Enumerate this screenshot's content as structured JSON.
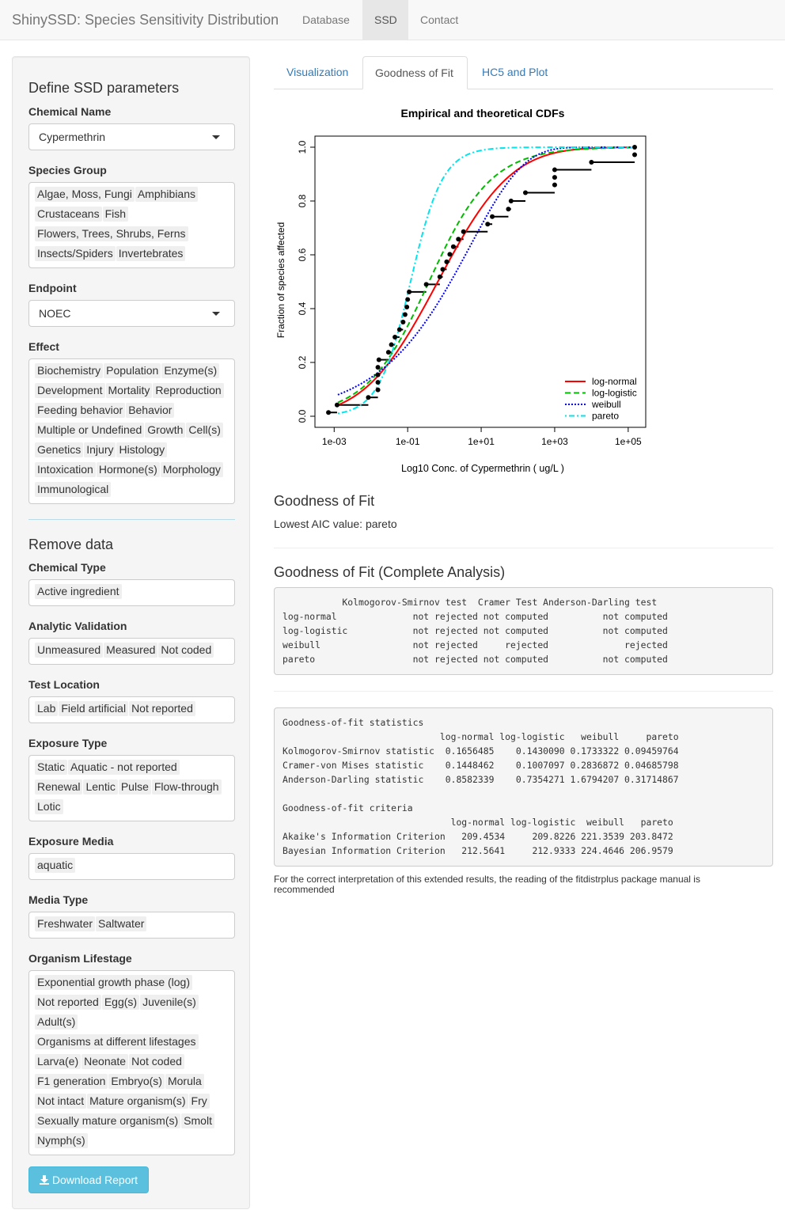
{
  "navbar": {
    "brand": "ShinySSD: Species Sensitivity Distribution",
    "items": [
      {
        "label": "Database"
      },
      {
        "label": "SSD"
      },
      {
        "label": "Contact"
      }
    ]
  },
  "sidebar": {
    "define_title": "Define SSD parameters",
    "chemical_name": {
      "label": "Chemical Name",
      "value": "Cypermethrin"
    },
    "species_group": {
      "label": "Species Group",
      "tags": [
        "Algae, Moss, Fungi",
        "Amphibians",
        "Crustaceans",
        "Fish",
        "Flowers, Trees, Shrubs, Ferns",
        "Insects/Spiders",
        "Invertebrates"
      ]
    },
    "endpoint": {
      "label": "Endpoint",
      "value": "NOEC"
    },
    "effect": {
      "label": "Effect",
      "tags": [
        "Biochemistry",
        "Population",
        "Enzyme(s)",
        "Development",
        "Mortality",
        "Reproduction",
        "Feeding behavior",
        "Behavior",
        "Multiple or Undefined",
        "Growth",
        "Cell(s)",
        "Genetics",
        "Injury",
        "Histology",
        "Intoxication",
        "Hormone(s)",
        "Morphology",
        "Immunological"
      ]
    },
    "remove_title": "Remove data",
    "chemical_type": {
      "label": "Chemical Type",
      "tags": [
        "Active ingredient"
      ]
    },
    "analytic_validation": {
      "label": "Analytic Validation",
      "tags": [
        "Unmeasured",
        "Measured",
        "Not coded"
      ]
    },
    "test_location": {
      "label": "Test Location",
      "tags": [
        "Lab",
        "Field artificial",
        "Not reported"
      ]
    },
    "exposure_type": {
      "label": "Exposure Type",
      "tags": [
        "Static",
        "Aquatic - not reported",
        "Renewal",
        "Lentic",
        "Pulse",
        "Flow-through",
        "Lotic"
      ]
    },
    "exposure_media": {
      "label": "Exposure Media",
      "tags": [
        "aquatic"
      ]
    },
    "media_type": {
      "label": "Media Type",
      "tags": [
        "Freshwater",
        "Saltwater"
      ]
    },
    "organism_lifestage": {
      "label": "Organism Lifestage",
      "tags": [
        "Exponential growth phase (log)",
        "Not reported",
        "Egg(s)",
        "Juvenile(s)",
        "Adult(s)",
        "Organisms at different lifestages",
        "Larva(e)",
        "Neonate",
        "Not coded",
        "F1 generation",
        "Embryo(s)",
        "Morula",
        "Not intact",
        "Mature organism(s)",
        "Fry",
        "Sexually mature organism(s)",
        "Smolt",
        "Nymph(s)"
      ]
    },
    "download_label": "Download Report",
    "download_icon": "download-icon"
  },
  "main": {
    "tabs": [
      {
        "label": "Visualization"
      },
      {
        "label": "Goodness of Fit"
      },
      {
        "label": "HC5 and Plot"
      }
    ],
    "gof_title": "Goodness of Fit",
    "lowest_aic": "Lowest AIC value: pareto",
    "complete_title": "Goodness of Fit (Complete Analysis)",
    "tests_table": "           Kolmogorov-Smirnov test  Cramer Test Anderson-Darling test\nlog-normal              not rejected not computed          not computed\nlog-logistic            not rejected not computed          not computed\nweibull                 not rejected     rejected              rejected\npareto                  not rejected not computed          not computed",
    "stats_table": "Goodness-of-fit statistics\n                             log-normal log-logistic   weibull     pareto\nKolmogorov-Smirnov statistic  0.1656485    0.1430090 0.1733322 0.09459764\nCramer-von Mises statistic    0.1448462    0.1007097 0.2836872 0.04685798\nAnderson-Darling statistic    0.8582339    0.7354271 1.6794207 0.31714867\n\nGoodness-of-fit criteria\n                               log-normal log-logistic  weibull   pareto\nAkaike's Information Criterion   209.4534     209.8226 221.3539 203.8472\nBayesian Information Criterion   212.5641     212.9333 224.4646 206.9579",
    "note": "For the correct interpretation of this extended results, the reading of the fitdistrplus package manual is recommended"
  },
  "chart_data": {
    "type": "line",
    "title": "Empirical and theoretical CDFs",
    "xlabel": "Log10 Conc. of Cypermethrin ( ug/L )",
    "ylabel": "Fraction of species affected",
    "x_scale": "log10",
    "xlim": [
      0.0003,
      300000
    ],
    "ylim": [
      0,
      1
    ],
    "x_ticks": [
      "1e-03",
      "1e-01",
      "1e+01",
      "1e+03",
      "1e+05"
    ],
    "y_ticks": [
      "0.0",
      "0.2",
      "0.4",
      "0.6",
      "0.8",
      "1.0"
    ],
    "legend_position": "bottom-right",
    "empirical_steps": [
      {
        "x": 0.0007,
        "y": 0.014
      },
      {
        "x": 0.0012,
        "y": 0.042
      },
      {
        "x": 0.0085,
        "y": 0.07
      },
      {
        "x": 0.0155,
        "y": 0.098
      },
      {
        "x": 0.0155,
        "y": 0.126
      },
      {
        "x": 0.0155,
        "y": 0.154
      },
      {
        "x": 0.0155,
        "y": 0.182
      },
      {
        "x": 0.0165,
        "y": 0.21
      },
      {
        "x": 0.03,
        "y": 0.238
      },
      {
        "x": 0.036,
        "y": 0.266
      },
      {
        "x": 0.045,
        "y": 0.294
      },
      {
        "x": 0.06,
        "y": 0.322
      },
      {
        "x": 0.075,
        "y": 0.35
      },
      {
        "x": 0.085,
        "y": 0.378
      },
      {
        "x": 0.095,
        "y": 0.406
      },
      {
        "x": 0.1,
        "y": 0.434
      },
      {
        "x": 0.11,
        "y": 0.462
      },
      {
        "x": 0.32,
        "y": 0.49
      },
      {
        "x": 0.75,
        "y": 0.518
      },
      {
        "x": 0.9,
        "y": 0.546
      },
      {
        "x": 1.15,
        "y": 0.574
      },
      {
        "x": 1.4,
        "y": 0.602
      },
      {
        "x": 1.75,
        "y": 0.63
      },
      {
        "x": 2.4,
        "y": 0.658
      },
      {
        "x": 3.3,
        "y": 0.686
      },
      {
        "x": 15,
        "y": 0.714
      },
      {
        "x": 20,
        "y": 0.742
      },
      {
        "x": 55,
        "y": 0.77
      },
      {
        "x": 65,
        "y": 0.8
      },
      {
        "x": 160,
        "y": 0.831
      },
      {
        "x": 1000,
        "y": 0.86
      },
      {
        "x": 1000,
        "y": 0.888
      },
      {
        "x": 1000,
        "y": 0.916
      },
      {
        "x": 10000,
        "y": 0.944
      },
      {
        "x": 150000,
        "y": 0.972
      },
      {
        "x": 150000,
        "y": 1.0
      }
    ],
    "series": [
      {
        "name": "log-normal",
        "color": "#ff0000",
        "dash": "solid",
        "meanlog": -0.18,
        "sdlog": 1.57
      },
      {
        "name": "log-logistic",
        "color": "#00bb00",
        "dash": "dashed",
        "loc": -0.42,
        "scale": 0.85
      },
      {
        "name": "weibull",
        "color": "#0000ee",
        "dash": "dotted",
        "shape": 0.3,
        "scale": 5.0
      },
      {
        "name": "pareto",
        "color": "#00e5ee",
        "dash": "dotdash",
        "shape": 1.0,
        "scale": 0.12
      }
    ]
  }
}
